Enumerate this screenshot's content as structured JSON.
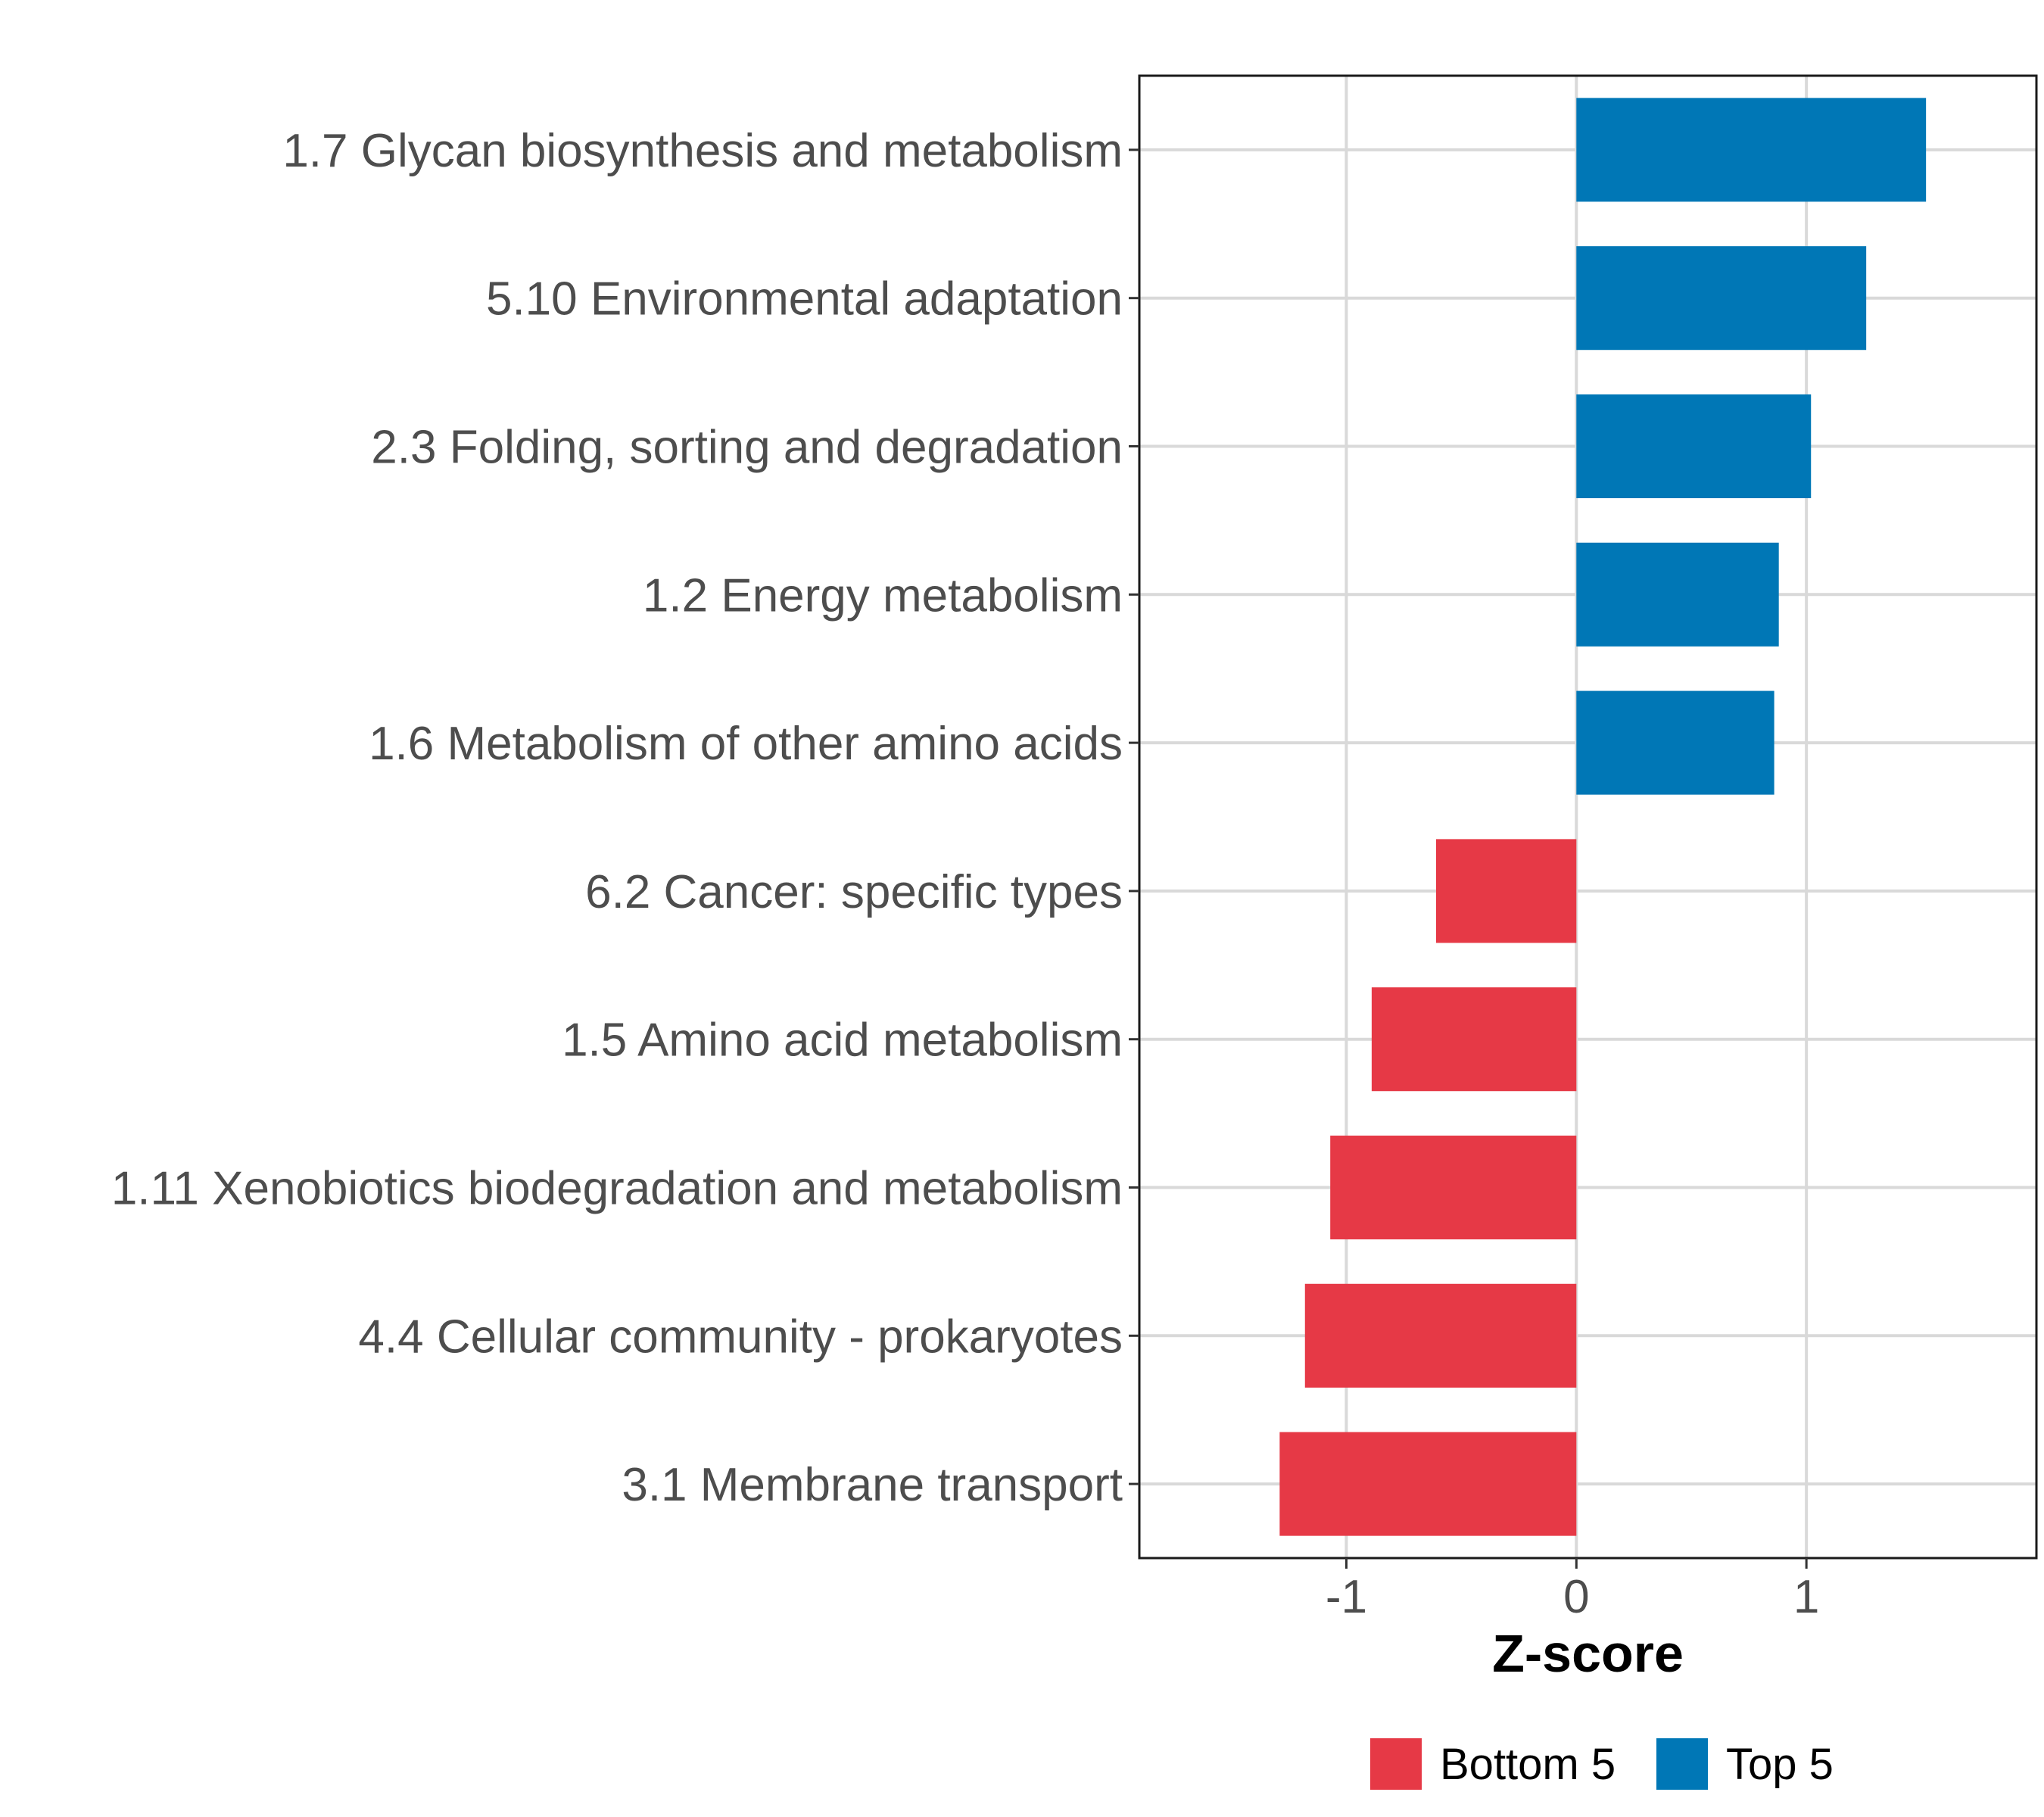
{
  "chart_data": {
    "type": "bar",
    "orientation": "horizontal",
    "title": "",
    "xlabel": "Z-score",
    "ylabel": "",
    "xlim": [
      -1.9,
      2.0
    ],
    "xticks": [
      -1,
      0,
      1
    ],
    "xtick_labels": [
      "-1",
      "0",
      "1"
    ],
    "grid": true,
    "legend_position": "bottom",
    "categories": [
      "1.7 Glycan biosynthesis and metabolism",
      "5.10 Environmental adaptation",
      "2.3 Folding, sorting and degradation",
      "1.2 Energy metabolism",
      "1.6 Metabolism of other amino acids",
      "6.2 Cancer: specific types",
      "1.5 Amino acid metabolism",
      "1.11 Xenobiotics biodegradation and metabolism",
      "4.4 Cellular community - prokaryotes",
      "3.1 Membrane transport"
    ],
    "values": [
      1.52,
      1.26,
      1.02,
      0.88,
      0.86,
      -0.61,
      -0.89,
      -1.07,
      -1.18,
      -1.29
    ],
    "groups": [
      "Top 5",
      "Top 5",
      "Top 5",
      "Top 5",
      "Top 5",
      "Bottom 5",
      "Bottom 5",
      "Bottom 5",
      "Bottom 5",
      "Bottom 5"
    ],
    "legend": [
      {
        "name": "Bottom 5",
        "color": "#e63946"
      },
      {
        "name": "Top 5",
        "color": "#0077b6"
      }
    ]
  }
}
